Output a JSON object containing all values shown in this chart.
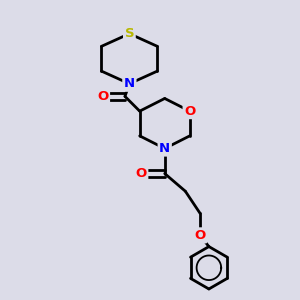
{
  "bg_color": "#dcdce8",
  "bond_color": "#000000",
  "S_color": "#b8b800",
  "N_color": "#0000ff",
  "O_color": "#ff0000",
  "line_width": 2.0,
  "figsize": [
    3.0,
    3.0
  ],
  "dpi": 100,
  "xlim": [
    0,
    10
  ],
  "ylim": [
    0,
    10
  ]
}
